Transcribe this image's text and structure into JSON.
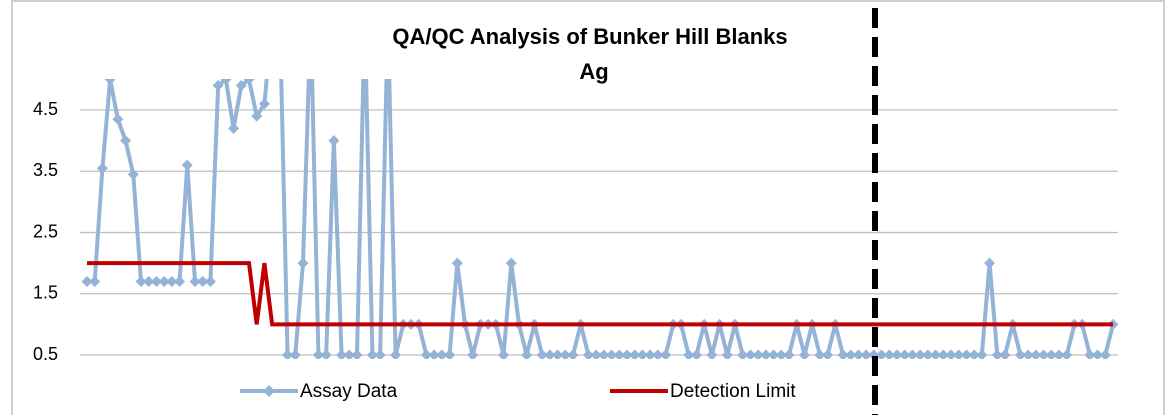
{
  "chart_data": {
    "type": "line",
    "title": "QA/QC Analysis of Bunker Hill Blanks",
    "subtitle": "Ag",
    "ylim": [
      0.5,
      5
    ],
    "yticks": [
      0.5,
      1.5,
      2.5,
      3.5,
      4.5
    ],
    "grid": true,
    "legend": "bottom",
    "series": [
      {
        "name": "Assay Data",
        "color": "#95b3d7",
        "marker": "diamond",
        "values": [
          1.7,
          1.7,
          3.55,
          5,
          4.35,
          4.0,
          3.45,
          1.7,
          1.7,
          1.7,
          1.7,
          1.7,
          1.7,
          3.6,
          1.7,
          1.7,
          1.7,
          4.9,
          5,
          4.2,
          4.9,
          5,
          4.4,
          4.6,
          6,
          6,
          0.5,
          0.5,
          2.0,
          6,
          0.5,
          0.5,
          4.0,
          0.5,
          0.5,
          0.5,
          6,
          0.5,
          0.5,
          6,
          0.5,
          1.0,
          1.0,
          1.0,
          0.5,
          0.5,
          0.5,
          0.5,
          2.0,
          1.0,
          0.5,
          1.0,
          1.0,
          1.0,
          0.5,
          2.0,
          1.0,
          0.5,
          1.0,
          0.5,
          0.5,
          0.5,
          0.5,
          0.5,
          1.0,
          0.5,
          0.5,
          0.5,
          0.5,
          0.5,
          0.5,
          0.5,
          0.5,
          0.5,
          0.5,
          0.5,
          1.0,
          1.0,
          0.5,
          0.5,
          1.0,
          0.5,
          1.0,
          0.5,
          1.0,
          0.5,
          0.5,
          0.5,
          0.5,
          0.5,
          0.5,
          0.5,
          1.0,
          0.5,
          1.0,
          0.5,
          0.5,
          1.0,
          0.5,
          0.5,
          0.5,
          0.5,
          0.5,
          0.5,
          0.5,
          0.5,
          0.5,
          0.5,
          0.5,
          0.5,
          0.5,
          0.5,
          0.5,
          0.5,
          0.5,
          0.5,
          0.5,
          2.0,
          0.5,
          0.5,
          1.0,
          0.5,
          0.5,
          0.5,
          0.5,
          0.5,
          0.5,
          0.5,
          1.0,
          1.0,
          0.5,
          0.5,
          0.5,
          1.0
        ]
      },
      {
        "name": "Detection Limit",
        "color": "#c00000",
        "marker": "none",
        "values": [
          2,
          2,
          2,
          2,
          2,
          2,
          2,
          2,
          2,
          2,
          2,
          2,
          2,
          2,
          2,
          2,
          2,
          2,
          2,
          2,
          2,
          2,
          1,
          2,
          1,
          1,
          1,
          1,
          1,
          1,
          1,
          1,
          1,
          1,
          1,
          1,
          1,
          1,
          1,
          1,
          1,
          1,
          1,
          1,
          1,
          1,
          1,
          1,
          1,
          1,
          1,
          1,
          1,
          1,
          1,
          1,
          1,
          1,
          1,
          1,
          1,
          1,
          1,
          1,
          1,
          1,
          1,
          1,
          1,
          1,
          1,
          1,
          1,
          1,
          1,
          1,
          1,
          1,
          1,
          1,
          1,
          1,
          1,
          1,
          1,
          1,
          1,
          1,
          1,
          1,
          1,
          1,
          1,
          1,
          1,
          1,
          1,
          1,
          1,
          1,
          1,
          1,
          1,
          1,
          1,
          1,
          1,
          1,
          1,
          1,
          1,
          1,
          1,
          1,
          1,
          1,
          1,
          1,
          1,
          1,
          1,
          1,
          1,
          1,
          1,
          1,
          1,
          1,
          1,
          1,
          1,
          1,
          1,
          1
        ]
      }
    ]
  }
}
